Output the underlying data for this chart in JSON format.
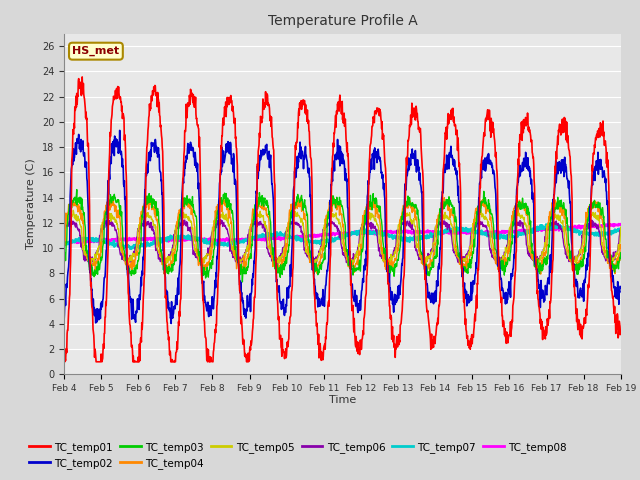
{
  "title": "Temperature Profile A",
  "ylabel": "Temperature (C)",
  "xlabel": "Time",
  "annotation": "HS_met",
  "ylim": [
    0,
    27
  ],
  "yticks": [
    0,
    2,
    4,
    6,
    8,
    10,
    12,
    14,
    16,
    18,
    20,
    22,
    24,
    26
  ],
  "x_labels": [
    "Feb 4",
    "Feb 5",
    "Feb 6",
    "Feb 7",
    "Feb 8",
    "Feb 9",
    "Feb 10",
    "Feb 11",
    "Feb 12",
    "Feb 13",
    "Feb 14",
    "Feb 15",
    "Feb 16",
    "Feb 17",
    "Feb 18",
    "Feb 19"
  ],
  "colors": {
    "TC_temp01": "#ff0000",
    "TC_temp02": "#0000cc",
    "TC_temp03": "#00cc00",
    "TC_temp04": "#ff8800",
    "TC_temp05": "#cccc00",
    "TC_temp06": "#8800aa",
    "TC_temp07": "#00cccc",
    "TC_temp08": "#ff00ff"
  },
  "background_color": "#d8d8d8",
  "plot_bg": "#e8e8e8",
  "grid_color": "#ffffff",
  "n_points": 1440
}
